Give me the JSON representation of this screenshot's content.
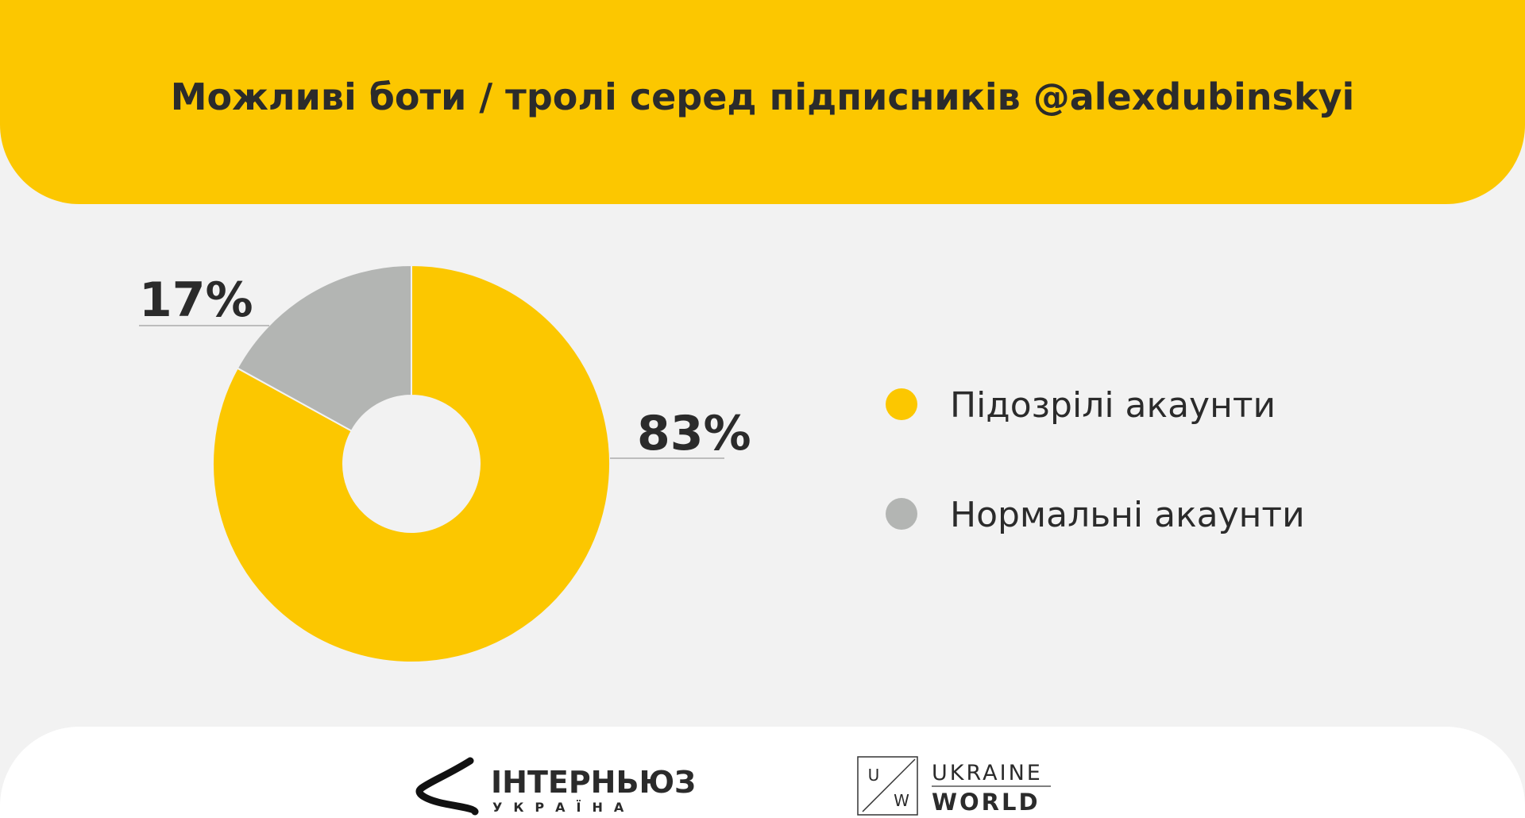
{
  "chart_data": {
    "type": "donut",
    "title": "Можливі боти / тролі серед підписників @alexdubinskyi",
    "categories": [
      "Підозрілі акаунти",
      "Нормальні акаунти"
    ],
    "values": [
      83,
      17
    ],
    "value_labels": [
      "83%",
      "17%"
    ],
    "colors": [
      "#fcc700",
      "#b3b5b3"
    ]
  },
  "footer": {
    "internews": {
      "name": "ІНТЕРНЬЮЗ",
      "sub": "УКРАЇНА"
    },
    "ukraine_world": {
      "u": "U",
      "w": "W",
      "line1": "UKRAINE",
      "line2": "WORLD"
    }
  }
}
